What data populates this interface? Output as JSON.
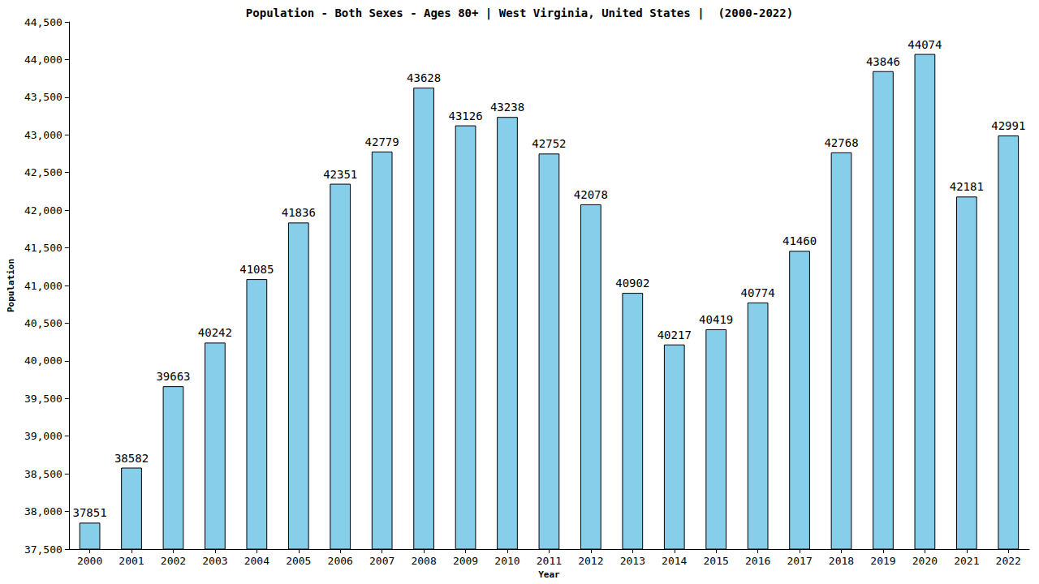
{
  "chart_data": {
    "type": "bar",
    "title": "Population - Both Sexes - Ages 80+ | West Virginia, United States |  (2000-2022)",
    "x_label": "Year",
    "y_label": "Population",
    "categories": [
      "2000",
      "2001",
      "2002",
      "2003",
      "2004",
      "2005",
      "2006",
      "2007",
      "2008",
      "2009",
      "2010",
      "2011",
      "2012",
      "2013",
      "2014",
      "2015",
      "2016",
      "2017",
      "2018",
      "2019",
      "2020",
      "2021",
      "2022"
    ],
    "values": [
      37851,
      38582,
      39663,
      40242,
      41085,
      41836,
      42351,
      42779,
      43628,
      43126,
      43238,
      42752,
      42078,
      40902,
      40217,
      40419,
      40774,
      41460,
      42768,
      43846,
      44074,
      42181,
      42991
    ],
    "color": "#87ceeb",
    "ylim": [
      37500,
      44500
    ],
    "yticks": [
      37500,
      38000,
      38500,
      39000,
      39500,
      40000,
      40500,
      41000,
      41500,
      42000,
      42500,
      43000,
      43500,
      44000,
      44500
    ],
    "grid": false,
    "data_labels": true
  }
}
